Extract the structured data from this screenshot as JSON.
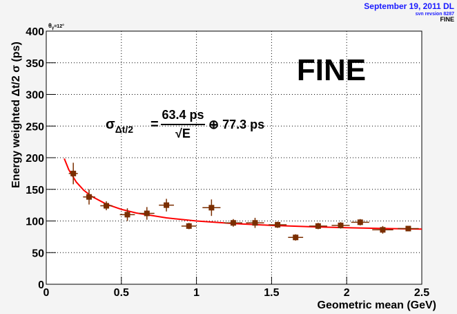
{
  "chart_data": {
    "type": "scatter",
    "header": {
      "date": "September 19, 2011 DL",
      "revision": "svn revsion 8287",
      "tag": "FINE"
    },
    "angle_label": {
      "symbol": "θ",
      "sub": "γ",
      "rest": "=12°"
    },
    "big_label": "FINE",
    "formula": {
      "lhs": "σ",
      "lhs_sub": "Δt/2",
      "equals": "=",
      "numerator": "63.4 ps",
      "denominator": "√E",
      "rest": "⊕ 77.3 ps"
    },
    "xlabel": "Geometric mean (GeV)",
    "ylabel": "Energy weighted Δt/2 σ (ps)",
    "xlim": [
      0,
      2.5
    ],
    "xticks": [
      0,
      0.5,
      1,
      1.5,
      2,
      2.5
    ],
    "ylim": [
      0,
      400
    ],
    "yticks": [
      0,
      50,
      100,
      150,
      200,
      250,
      300,
      350,
      400
    ],
    "grid": true,
    "series": [
      {
        "color": "#7a2e00",
        "x": [
          0.18,
          0.285,
          0.4,
          0.54,
          0.67,
          0.8,
          0.95,
          1.1,
          1.245,
          1.39,
          1.54,
          1.66,
          1.81,
          1.96,
          2.09,
          2.24,
          2.41
        ],
        "xerrors": [
          0.03,
          0.04,
          0.04,
          0.05,
          0.05,
          0.05,
          0.05,
          0.06,
          0.06,
          0.06,
          0.06,
          0.05,
          0.06,
          0.06,
          0.06,
          0.07,
          0.07
        ],
        "values": [
          175,
          138,
          124,
          110,
          112,
          125,
          92,
          121,
          97,
          97,
          94,
          74,
          92,
          93,
          98,
          86,
          88
        ],
        "errors": [
          17,
          12,
          7,
          10,
          10,
          10,
          5,
          13,
          6,
          8,
          5,
          5,
          5,
          5,
          5,
          6,
          3
        ]
      }
    ],
    "fit_curve": {
      "color": "#ff0000",
      "x": [
        0.12,
        0.15,
        0.2,
        0.25,
        0.3,
        0.4,
        0.5,
        0.6,
        0.8,
        1.0,
        1.25,
        1.5,
        1.75,
        2.0,
        2.25,
        2.5
      ],
      "values": [
        198.7,
        181.0,
        161.5,
        148.5,
        139.2,
        126.6,
        118.4,
        112.6,
        104.9,
        100.0,
        95.9,
        93.0,
        91.0,
        89.4,
        88.1,
        87.1
      ]
    }
  }
}
